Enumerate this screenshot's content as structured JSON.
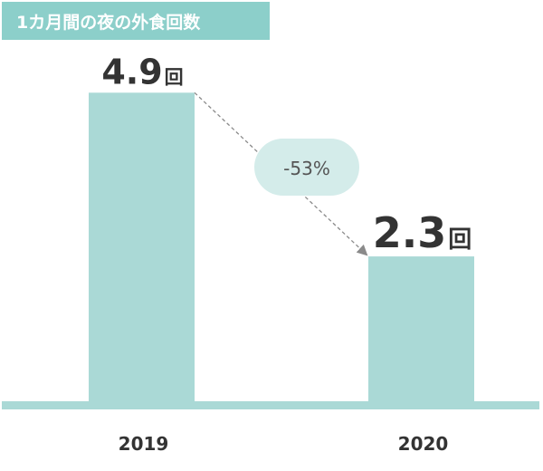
{
  "colors": {
    "bar": "#aad9d6",
    "baseline": "#aad9d6",
    "title_bg": "#8ccfca",
    "title_text": "#ffffff",
    "pill_bg": "#d4ecea",
    "text_dark": "#333333",
    "text_muted": "#555555",
    "arrow": "#8a8a8a"
  },
  "chart_data": {
    "type": "bar",
    "title": "1カ月間の夜の外食回数",
    "categories": [
      "2019",
      "2020"
    ],
    "values": [
      4.9,
      2.3
    ],
    "value_labels": [
      {
        "number": "4.9",
        "unit": "回"
      },
      {
        "number": "2.3",
        "unit": "回"
      }
    ],
    "change_label": "-53%",
    "ylim": [
      0,
      6.3
    ],
    "grid": false,
    "legend": "none"
  }
}
